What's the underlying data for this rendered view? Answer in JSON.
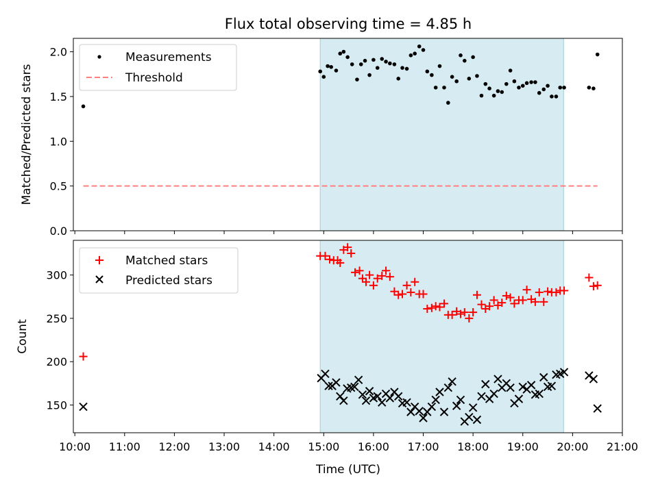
{
  "chart_data": [
    {
      "type": "scatter",
      "panel": "top",
      "title": "Flux total observing time = 4.85 h",
      "ylabel": "Matched/Predicted stars",
      "ylim": [
        0,
        2.15
      ],
      "yticks": [
        0.0,
        0.5,
        1.0,
        1.5,
        2.0
      ],
      "ytick_labels": [
        "0.0",
        "0.5",
        "1.0",
        "1.5",
        "2.0"
      ],
      "legend": {
        "placement": "top-left",
        "entries": [
          "Measurements",
          "Threshold"
        ]
      },
      "shaded_interval": {
        "start": 14.93,
        "end": 19.82
      },
      "series": [
        {
          "name": "Measurements",
          "marker": "dot",
          "color": "#000000",
          "x": [
            10.17,
            14.93,
            15.0,
            15.08,
            15.15,
            15.25,
            15.33,
            15.4,
            15.48,
            15.57,
            15.67,
            15.75,
            15.83,
            15.92,
            16.0,
            16.08,
            16.17,
            16.25,
            16.33,
            16.42,
            16.5,
            16.58,
            16.67,
            16.75,
            16.83,
            16.92,
            17.0,
            17.08,
            17.17,
            17.25,
            17.33,
            17.42,
            17.5,
            17.58,
            17.67,
            17.75,
            17.83,
            17.92,
            18.0,
            18.08,
            18.17,
            18.25,
            18.33,
            18.42,
            18.5,
            18.58,
            18.67,
            18.75,
            18.83,
            18.92,
            19.0,
            19.08,
            19.17,
            19.25,
            19.33,
            19.42,
            19.5,
            19.58,
            19.67,
            19.75,
            19.83,
            20.33,
            20.42,
            20.5
          ],
          "y": [
            1.39,
            1.78,
            1.72,
            1.84,
            1.83,
            1.79,
            1.98,
            2.0,
            1.94,
            1.86,
            1.69,
            1.86,
            1.9,
            1.74,
            1.91,
            1.82,
            1.92,
            1.89,
            1.87,
            1.86,
            1.7,
            1.82,
            1.81,
            1.96,
            1.98,
            2.06,
            2.02,
            1.78,
            1.74,
            1.6,
            1.84,
            1.6,
            1.43,
            1.72,
            1.67,
            1.96,
            1.9,
            1.7,
            1.94,
            1.73,
            1.51,
            1.64,
            1.59,
            1.51,
            1.56,
            1.55,
            1.64,
            1.79,
            1.67,
            1.6,
            1.62,
            1.65,
            1.66,
            1.66,
            1.54,
            1.58,
            1.62,
            1.5,
            1.5,
            1.6,
            1.6,
            1.6,
            1.59,
            1.97
          ]
        },
        {
          "name": "Threshold",
          "style": "dashed",
          "color": "#ff7f7f",
          "x": [
            10.17,
            20.5
          ],
          "y": [
            0.5,
            0.5
          ]
        }
      ]
    },
    {
      "type": "scatter",
      "panel": "bottom",
      "xlabel": "Time (UTC)",
      "ylabel": "Count",
      "ylim": [
        118,
        340
      ],
      "xlim": [
        9.97,
        21.0
      ],
      "yticks": [
        150,
        200,
        250,
        300
      ],
      "ytick_labels": [
        "150",
        "200",
        "250",
        "300"
      ],
      "xticks": [
        10,
        11,
        12,
        13,
        14,
        15,
        16,
        17,
        18,
        19,
        20,
        21
      ],
      "xtick_labels": [
        "10:00",
        "11:00",
        "12:00",
        "13:00",
        "14:00",
        "15:00",
        "16:00",
        "17:00",
        "18:00",
        "19:00",
        "20:00",
        "21:00"
      ],
      "legend": {
        "placement": "top-left",
        "entries": [
          "Matched stars",
          "Predicted stars"
        ]
      },
      "shaded_interval": {
        "start": 14.93,
        "end": 19.82
      },
      "series": [
        {
          "name": "Matched stars",
          "marker": "plus",
          "color": "#ff0000",
          "x": [
            10.17,
            14.93,
            15.03,
            15.12,
            15.2,
            15.28,
            15.33,
            15.4,
            15.48,
            15.55,
            15.63,
            15.72,
            15.78,
            15.85,
            15.92,
            16.0,
            16.08,
            16.17,
            16.25,
            16.33,
            16.42,
            16.5,
            16.58,
            16.67,
            16.75,
            16.83,
            16.92,
            17.0,
            17.08,
            17.17,
            17.25,
            17.33,
            17.42,
            17.5,
            17.58,
            17.67,
            17.75,
            17.83,
            17.92,
            18.0,
            18.08,
            18.17,
            18.25,
            18.33,
            18.42,
            18.5,
            18.58,
            18.67,
            18.75,
            18.83,
            18.92,
            19.0,
            19.08,
            19.17,
            19.25,
            19.33,
            19.42,
            19.5,
            19.58,
            19.67,
            19.75,
            19.83,
            20.33,
            20.42,
            20.5
          ],
          "y": [
            206,
            322,
            322,
            318,
            317,
            317,
            314,
            329,
            332,
            325,
            303,
            305,
            296,
            292,
            300,
            288,
            296,
            299,
            305,
            298,
            281,
            277,
            278,
            288,
            280,
            292,
            278,
            278,
            261,
            262,
            264,
            263,
            267,
            254,
            254,
            258,
            255,
            257,
            250,
            257,
            277,
            266,
            261,
            264,
            271,
            265,
            268,
            276,
            274,
            267,
            271,
            271,
            283,
            272,
            269,
            280,
            269,
            281,
            280,
            280,
            282,
            282,
            297,
            287,
            288
          ]
        },
        {
          "name": "Predicted stars",
          "marker": "x",
          "color": "#000000",
          "x": [
            10.17,
            14.95,
            15.03,
            15.1,
            15.17,
            15.25,
            15.33,
            15.4,
            15.47,
            15.55,
            15.62,
            15.7,
            15.78,
            15.85,
            15.92,
            16.0,
            16.08,
            16.17,
            16.25,
            16.33,
            16.42,
            16.5,
            16.58,
            16.67,
            16.75,
            16.83,
            16.92,
            17.0,
            17.08,
            17.17,
            17.25,
            17.33,
            17.42,
            17.5,
            17.58,
            17.67,
            17.75,
            17.83,
            17.92,
            18.0,
            18.08,
            18.17,
            18.25,
            18.33,
            18.42,
            18.5,
            18.58,
            18.67,
            18.75,
            18.83,
            18.92,
            19.0,
            19.08,
            19.17,
            19.25,
            19.33,
            19.42,
            19.5,
            19.58,
            19.67,
            19.75,
            19.83,
            20.33,
            20.42,
            20.5
          ],
          "y": [
            148,
            181,
            186,
            172,
            172,
            176,
            160,
            155,
            169,
            170,
            171,
            179,
            162,
            155,
            166,
            158,
            160,
            153,
            163,
            158,
            165,
            160,
            152,
            153,
            142,
            148,
            143,
            135,
            142,
            148,
            156,
            165,
            142,
            170,
            177,
            149,
            156,
            131,
            136,
            147,
            133,
            160,
            174,
            157,
            163,
            180,
            170,
            175,
            170,
            152,
            157,
            171,
            168,
            173,
            162,
            163,
            182,
            171,
            172,
            185,
            186,
            188,
            184,
            180,
            146
          ]
        }
      ]
    }
  ]
}
